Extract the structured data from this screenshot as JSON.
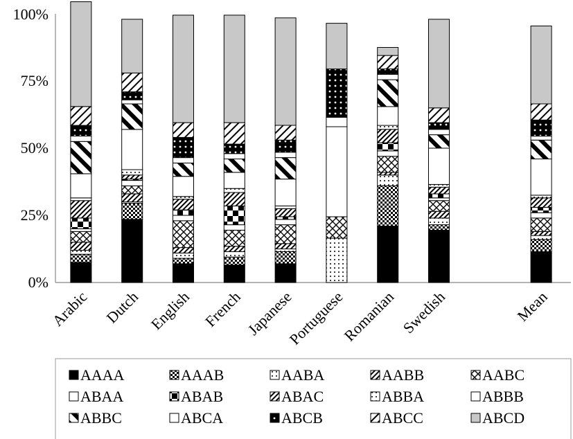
{
  "chart_data": {
    "type": "bar",
    "stacked": true,
    "percent": true,
    "categories": [
      "Arabic",
      "Dutch",
      "English",
      "French",
      "Japanese",
      "Portuguese",
      "Romanian",
      "Swedish",
      "",
      "Mean"
    ],
    "y_ticks": [
      "0%",
      "25%",
      "50%",
      "75%",
      "100%"
    ],
    "ylim": [
      0,
      100
    ],
    "grid": false,
    "legend_position": "bottom",
    "series": [
      {
        "name": "AAAA",
        "values": [
          7.5,
          23.5,
          7,
          6.5,
          7,
          0,
          21,
          19.5,
          null,
          11.5
        ],
        "fill": "#000000",
        "pattern": "solid"
      },
      {
        "name": "AAAB",
        "values": [
          3,
          6,
          2,
          3,
          4.5,
          0,
          15,
          2,
          null,
          4.5
        ],
        "fill": "#000000",
        "pattern": "checker"
      },
      {
        "name": "AABA",
        "values": [
          1.5,
          0.5,
          2,
          2,
          1,
          16.5,
          4,
          2.5,
          null,
          1.5
        ],
        "fill": "#000000",
        "pattern": "dots"
      },
      {
        "name": "AABB",
        "values": [
          3,
          3,
          2,
          2,
          2,
          0,
          1,
          2.5,
          null,
          1.5
        ],
        "fill": "#000000",
        "pattern": "diag-dense"
      },
      {
        "name": "AABC",
        "values": [
          4,
          3,
          10,
          6,
          7,
          8,
          6,
          4,
          null,
          5
        ],
        "fill": "#000000",
        "pattern": "cross"
      },
      {
        "name": "ABAA",
        "values": [
          1,
          2,
          2,
          2,
          2,
          0,
          2,
          1,
          null,
          2
        ],
        "fill": "#ffffff",
        "pattern": "solid"
      },
      {
        "name": "ABAB",
        "values": [
          4,
          0.5,
          2,
          7,
          1,
          0,
          3,
          1.5,
          null,
          2
        ],
        "fill": "#000000",
        "pattern": "checker-big"
      },
      {
        "name": "ABAC",
        "values": [
          6.5,
          1.5,
          4,
          5,
          3,
          0,
          5,
          2.5,
          null,
          3.5
        ],
        "fill": "#000000",
        "pattern": "diag-dense"
      },
      {
        "name": "ABBA",
        "values": [
          1,
          2,
          1,
          1.5,
          1,
          0,
          1.5,
          1,
          null,
          1
        ],
        "fill": "#000000",
        "pattern": "dots"
      },
      {
        "name": "ABBB",
        "values": [
          9,
          15,
          7.5,
          6,
          10,
          33.5,
          7,
          13.5,
          null,
          13.5
        ],
        "fill": "#ffffff",
        "pattern": "solid"
      },
      {
        "name": "ABBC",
        "values": [
          12,
          9.5,
          5,
          5,
          8,
          0,
          10,
          5,
          null,
          7
        ],
        "fill": "#000000",
        "pattern": "diag-thick"
      },
      {
        "name": "ABCA",
        "values": [
          2,
          1.5,
          2,
          2,
          2,
          3.5,
          2,
          2,
          null,
          1.5
        ],
        "fill": "#ffffff",
        "pattern": "solid"
      },
      {
        "name": "ABCB",
        "values": [
          4,
          3,
          7.5,
          3.5,
          4.5,
          18,
          2,
          2.5,
          null,
          6
        ],
        "fill": "#000000",
        "pattern": "dots-white"
      },
      {
        "name": "ABCC",
        "values": [
          7,
          7,
          5.5,
          8,
          5.5,
          0,
          5,
          5.5,
          null,
          6
        ],
        "fill": "#000000",
        "pattern": "diag-sparse"
      },
      {
        "name": "ABCD",
        "values": [
          39,
          20,
          40,
          40,
          40,
          17,
          3,
          33,
          null,
          29
        ],
        "fill": "#c8c8c8",
        "pattern": "solid"
      }
    ]
  }
}
